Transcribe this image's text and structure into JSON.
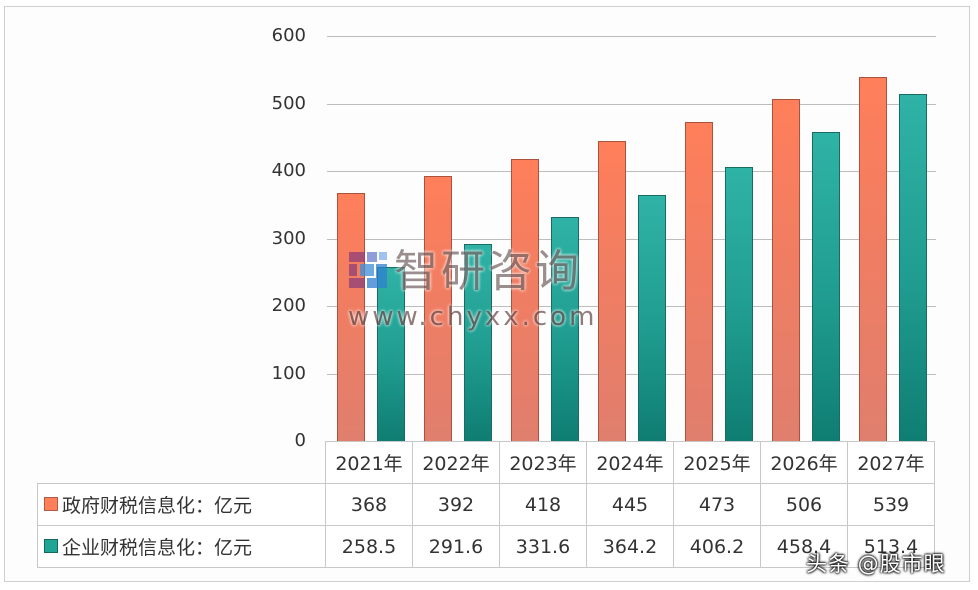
{
  "chart_data": {
    "type": "bar",
    "title": "",
    "xlabel": "",
    "ylabel": "",
    "unit": "亿元",
    "ylim": [
      0,
      600
    ],
    "yticks": [
      "0",
      "100",
      "200",
      "300",
      "400",
      "500",
      "600"
    ],
    "grid": true,
    "legend_position": "data-table",
    "categories": [
      "2021年",
      "2022年",
      "2023年",
      "2024年",
      "2025年",
      "2026年",
      "2027年"
    ],
    "series": [
      {
        "name": "政府财税信息化：亿元",
        "color": "#ff7f5a",
        "values": [
          368,
          392,
          418,
          445,
          473,
          506,
          539
        ],
        "labels": [
          "368",
          "392",
          "418",
          "445",
          "473",
          "506",
          "539"
        ]
      },
      {
        "name": "企业财税信息化：亿元",
        "color": "#1fa596",
        "values": [
          258.5,
          291.6,
          331.6,
          364.2,
          406.2,
          458.4,
          513.4
        ],
        "labels": [
          "258.5",
          "291.6",
          "331.6",
          "364.2",
          "406.2",
          "458.4",
          "513.4"
        ]
      }
    ]
  },
  "watermark": {
    "brand": "智研咨询",
    "url": "www.chyxx.com"
  },
  "credit": "头条 @股市眼"
}
